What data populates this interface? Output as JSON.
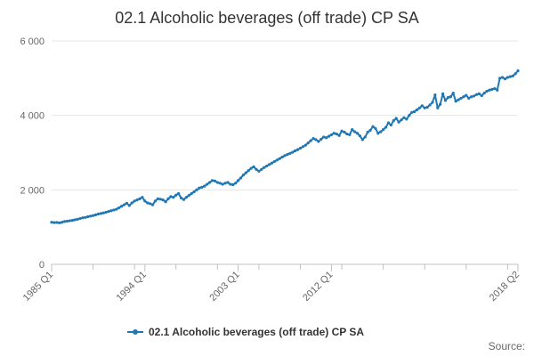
{
  "chart_data": {
    "type": "line",
    "title": "02.1 Alcoholic beverages (off trade) CP SA",
    "xlabel": "",
    "ylabel": "",
    "x_start": "1985 Q1",
    "x_end": "2018 Q2",
    "x_tick_labels": [
      "1985 Q1",
      "1994 Q1",
      "2003 Q1",
      "2012 Q1",
      "2018 Q2"
    ],
    "ylim": [
      0,
      6000
    ],
    "y_ticks": [
      0,
      2000,
      4000,
      6000
    ],
    "y_tick_labels": [
      "0",
      "2 000",
      "4 000",
      "6 000"
    ],
    "grid": true,
    "legend_position": "bottom",
    "series_color": "#1f77b4",
    "series": [
      {
        "name": "02.1 Alcoholic beverages (off trade) CP SA",
        "values": [
          1130,
          1120,
          1125,
          1115,
          1130,
          1150,
          1160,
          1170,
          1180,
          1195,
          1210,
          1230,
          1250,
          1260,
          1280,
          1295,
          1310,
          1330,
          1350,
          1365,
          1380,
          1400,
          1420,
          1440,
          1460,
          1480,
          1520,
          1560,
          1600,
          1640,
          1580,
          1650,
          1700,
          1730,
          1760,
          1800,
          1700,
          1650,
          1630,
          1600,
          1700,
          1760,
          1750,
          1730,
          1680,
          1760,
          1820,
          1800,
          1860,
          1900,
          1780,
          1740,
          1800,
          1850,
          1900,
          1950,
          2000,
          2050,
          2070,
          2100,
          2150,
          2200,
          2250,
          2240,
          2200,
          2180,
          2150,
          2180,
          2200,
          2150,
          2140,
          2180,
          2250,
          2320,
          2400,
          2460,
          2520,
          2580,
          2620,
          2550,
          2500,
          2550,
          2600,
          2640,
          2680,
          2720,
          2760,
          2800,
          2840,
          2880,
          2920,
          2950,
          2980,
          3010,
          3050,
          3080,
          3120,
          3160,
          3200,
          3260,
          3320,
          3380,
          3350,
          3300,
          3360,
          3420,
          3400,
          3440,
          3480,
          3520,
          3500,
          3460,
          3580,
          3550,
          3500,
          3480,
          3620,
          3560,
          3520,
          3450,
          3350,
          3420,
          3550,
          3600,
          3700,
          3650,
          3520,
          3560,
          3620,
          3680,
          3800,
          3740,
          3860,
          3920,
          3820,
          3880,
          3940,
          3900,
          4000,
          4080,
          4100,
          4150,
          4200,
          4260,
          4200,
          4220,
          4280,
          4350,
          4550,
          4200,
          4300,
          4580,
          4400,
          4480,
          4500,
          4600,
          4380,
          4420,
          4460,
          4500,
          4540,
          4460,
          4500,
          4520,
          4560,
          4580,
          4530,
          4600,
          4650,
          4680,
          4700,
          4720,
          4680,
          5000,
          5020,
          4980,
          5020,
          5040,
          5060,
          5120,
          5200
        ]
      }
    ]
  },
  "legend": {
    "label": "02.1 Alcoholic beverages (off trade) CP SA"
  },
  "footer": {
    "source_label": "Source:"
  }
}
